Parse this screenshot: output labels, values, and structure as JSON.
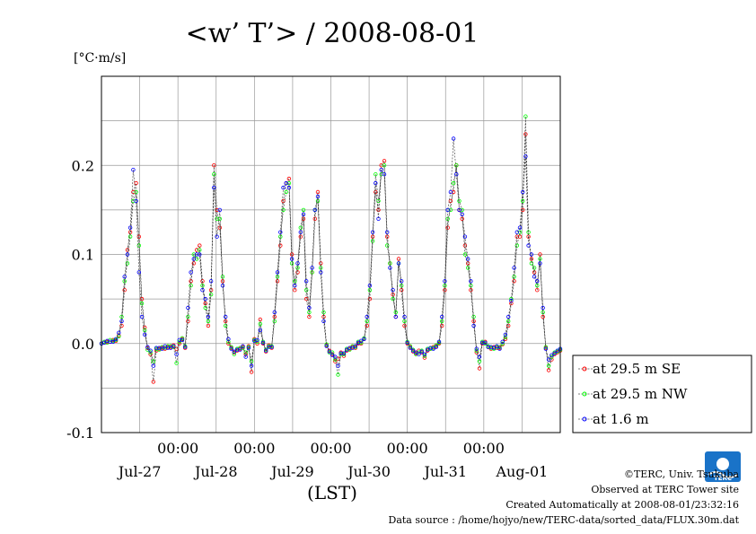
{
  "chart_data": {
    "type": "line",
    "title": "<w’ T’> / 2008-08-01",
    "ylabel": "[°C·m/s]",
    "xlabel": "(LST)",
    "ylim": [
      -0.1,
      0.3
    ],
    "xlim_hours": [
      0,
      144
    ],
    "y_ticks": [
      {
        "value": -0.1,
        "label": "-0.1"
      },
      {
        "value": 0.0,
        "label": "0.0"
      },
      {
        "value": 0.1,
        "label": "0.1"
      },
      {
        "value": 0.2,
        "label": "0.2"
      }
    ],
    "x_ticks": [
      {
        "hour": 24,
        "time": "00:00"
      },
      {
        "hour": 48,
        "time": "00:00"
      },
      {
        "hour": 72,
        "time": "00:00"
      },
      {
        "hour": 96,
        "time": "00:00"
      },
      {
        "hour": 120,
        "time": "00:00"
      }
    ],
    "day_labels": [
      {
        "hour": 12,
        "label": "Jul-27"
      },
      {
        "hour": 36,
        "label": "Jul-28"
      },
      {
        "hour": 60,
        "label": "Jul-29"
      },
      {
        "hour": 84,
        "label": "Jul-30"
      },
      {
        "hour": 108,
        "label": "Jul-31"
      },
      {
        "hour": 132,
        "label": "Aug-01"
      }
    ],
    "grid": true,
    "legend_position": "right",
    "series": [
      {
        "name": "at 29.5 m SE",
        "color": "#ff0000",
        "y": [
          0.0,
          0.001,
          0.002,
          0.002,
          0.004,
          0.003,
          0.009,
          0.02,
          0.06,
          0.105,
          0.125,
          0.17,
          0.18,
          0.12,
          0.05,
          0.018,
          -0.005,
          -0.012,
          -0.043,
          -0.008,
          -0.006,
          -0.005,
          -0.006,
          -0.004,
          -0.004,
          -0.002,
          -0.006,
          0.0,
          0.005,
          -0.005,
          0.025,
          0.07,
          0.09,
          0.105,
          0.11,
          0.07,
          0.045,
          0.02,
          0.06,
          0.2,
          0.15,
          0.13,
          0.07,
          0.025,
          0.0,
          -0.005,
          -0.01,
          -0.008,
          -0.006,
          -0.004,
          -0.012,
          -0.003,
          -0.032,
          0.005,
          0.0,
          0.027,
          0.0,
          -0.009,
          -0.002,
          -0.005,
          0.03,
          0.07,
          0.11,
          0.16,
          0.18,
          0.185,
          0.1,
          0.06,
          0.08,
          0.12,
          0.14,
          0.05,
          0.03,
          0.08,
          0.14,
          0.17,
          0.09,
          0.03,
          -0.002,
          -0.008,
          -0.012,
          -0.02,
          -0.017,
          -0.01,
          -0.014,
          -0.008,
          -0.006,
          -0.004,
          -0.005,
          0.0,
          0.0,
          0.005,
          0.02,
          0.05,
          0.12,
          0.17,
          0.15,
          0.2,
          0.205,
          0.12,
          0.09,
          0.055,
          0.03,
          0.095,
          0.06,
          0.02,
          0.0,
          -0.004,
          -0.009,
          -0.011,
          -0.008,
          -0.01,
          -0.016,
          -0.008,
          -0.006,
          -0.004,
          -0.003,
          0.0,
          0.02,
          0.06,
          0.13,
          0.16,
          0.17,
          0.2,
          0.15,
          0.14,
          0.11,
          0.09,
          0.06,
          0.025,
          -0.01,
          -0.028,
          0.0,
          0.002,
          -0.004,
          -0.006,
          -0.004,
          -0.005,
          -0.005,
          -0.001,
          0.005,
          0.02,
          0.045,
          0.07,
          0.12,
          0.12,
          0.15,
          0.235,
          0.12,
          0.095,
          0.08,
          0.06,
          0.1,
          0.03,
          -0.005,
          -0.03,
          -0.018,
          -0.012,
          -0.01,
          -0.008
        ]
      },
      {
        "name": "at 29.5 m NW",
        "color": "#00ff00",
        "y": [
          0.0,
          0.002,
          0.001,
          0.004,
          0.003,
          0.004,
          0.008,
          0.03,
          0.07,
          0.09,
          0.12,
          0.16,
          0.17,
          0.11,
          0.045,
          0.015,
          -0.007,
          -0.01,
          -0.02,
          -0.006,
          -0.007,
          -0.004,
          -0.005,
          -0.003,
          -0.003,
          -0.004,
          -0.022,
          0.002,
          0.006,
          -0.003,
          0.03,
          0.065,
          0.1,
          0.095,
          0.105,
          0.065,
          0.04,
          0.025,
          0.055,
          0.19,
          0.14,
          0.14,
          0.075,
          0.02,
          0.002,
          -0.004,
          -0.012,
          -0.006,
          -0.005,
          -0.005,
          -0.01,
          -0.004,
          -0.02,
          0.004,
          0.002,
          0.022,
          0.002,
          -0.007,
          -0.003,
          -0.003,
          0.025,
          0.075,
          0.12,
          0.15,
          0.17,
          0.18,
          0.09,
          0.07,
          0.085,
          0.13,
          0.15,
          0.06,
          0.035,
          0.08,
          0.15,
          0.16,
          0.085,
          0.035,
          -0.001,
          -0.01,
          -0.01,
          -0.018,
          -0.035,
          -0.012,
          -0.012,
          -0.006,
          -0.007,
          -0.003,
          -0.004,
          0.002,
          0.001,
          0.006,
          0.025,
          0.06,
          0.115,
          0.19,
          0.16,
          0.19,
          0.2,
          0.11,
          0.09,
          0.05,
          0.035,
          0.09,
          0.065,
          0.025,
          0.002,
          -0.003,
          -0.007,
          -0.012,
          -0.01,
          -0.008,
          -0.014,
          -0.006,
          -0.006,
          -0.005,
          -0.002,
          0.001,
          0.025,
          0.065,
          0.14,
          0.15,
          0.18,
          0.2,
          0.16,
          0.15,
          0.1,
          0.085,
          0.065,
          0.03,
          -0.008,
          -0.02,
          0.002,
          0.0,
          -0.003,
          -0.005,
          -0.006,
          -0.004,
          -0.004,
          0.0,
          0.007,
          0.025,
          0.05,
          0.075,
          0.11,
          0.125,
          0.16,
          0.255,
          0.125,
          0.09,
          0.085,
          0.065,
          0.095,
          0.035,
          -0.004,
          -0.025,
          -0.015,
          -0.01,
          -0.009,
          -0.007
        ]
      },
      {
        "name": "at 1.6 m",
        "color": "#0000ff",
        "y": [
          0.0,
          0.001,
          0.003,
          0.002,
          0.002,
          0.005,
          0.012,
          0.025,
          0.075,
          0.1,
          0.13,
          0.195,
          0.16,
          0.08,
          0.03,
          0.01,
          -0.004,
          -0.008,
          -0.025,
          -0.005,
          -0.005,
          -0.006,
          -0.003,
          -0.005,
          -0.005,
          -0.003,
          -0.012,
          0.004,
          0.004,
          -0.004,
          0.04,
          0.08,
          0.095,
          0.1,
          0.1,
          0.06,
          0.05,
          0.03,
          0.07,
          0.175,
          0.12,
          0.15,
          0.065,
          0.03,
          0.005,
          -0.006,
          -0.009,
          -0.007,
          -0.007,
          -0.003,
          -0.015,
          -0.005,
          -0.025,
          0.003,
          0.004,
          0.015,
          0.001,
          -0.008,
          -0.004,
          -0.004,
          0.035,
          0.08,
          0.125,
          0.175,
          0.18,
          0.175,
          0.095,
          0.065,
          0.09,
          0.125,
          0.145,
          0.07,
          0.04,
          0.085,
          0.15,
          0.165,
          0.08,
          0.025,
          -0.003,
          -0.009,
          -0.013,
          -0.015,
          -0.025,
          -0.011,
          -0.011,
          -0.007,
          -0.005,
          -0.005,
          -0.003,
          0.001,
          0.003,
          0.005,
          0.03,
          0.065,
          0.125,
          0.18,
          0.14,
          0.195,
          0.19,
          0.125,
          0.085,
          0.06,
          0.03,
          0.09,
          0.07,
          0.03,
          0.001,
          -0.005,
          -0.008,
          -0.01,
          -0.012,
          -0.009,
          -0.012,
          -0.007,
          -0.005,
          -0.006,
          -0.004,
          0.002,
          0.03,
          0.07,
          0.15,
          0.17,
          0.23,
          0.19,
          0.15,
          0.145,
          0.12,
          0.095,
          0.07,
          0.02,
          -0.006,
          -0.015,
          0.001,
          0.001,
          -0.004,
          -0.004,
          -0.005,
          -0.003,
          -0.006,
          0.002,
          0.01,
          0.03,
          0.048,
          0.085,
          0.125,
          0.13,
          0.17,
          0.21,
          0.11,
          0.1,
          0.075,
          0.07,
          0.09,
          0.04,
          -0.006,
          -0.018,
          -0.013,
          -0.011,
          -0.008,
          -0.006
        ]
      }
    ]
  },
  "footer": {
    "copyright": "©TERC, Univ. Tsukuba",
    "observed": "Observed at TERC Tower site",
    "created": "Created Automatically at 2008-08-01/23:32:16",
    "source": "Data source : /home/hojyo/new/TERC-data/sorted_data/FLUX.30m.dat"
  },
  "logo": {
    "text": "TERC",
    "color": "#1a73c8"
  }
}
